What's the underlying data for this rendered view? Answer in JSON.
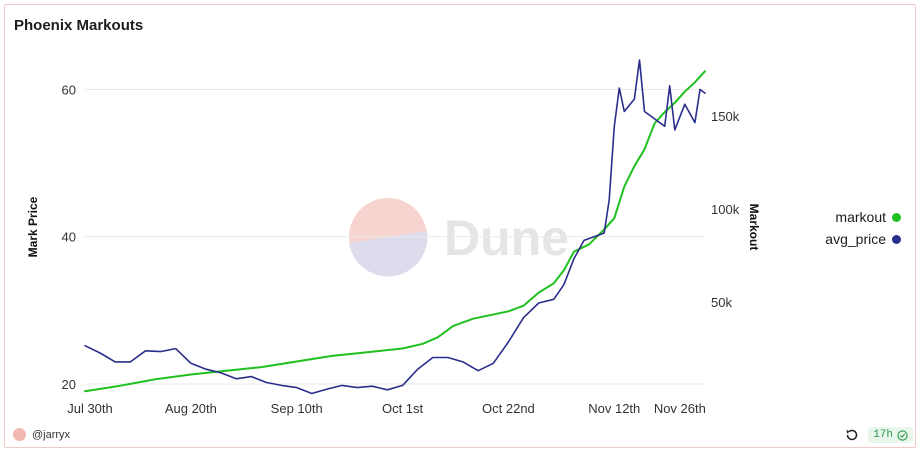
{
  "title": "Phoenix Markouts",
  "watermark": "Dune",
  "author": "@jarryx",
  "refresh_age": "17h",
  "icons": {
    "refresh": "refresh-icon",
    "status": "check-circle-icon",
    "avatar": "avatar"
  },
  "colors": {
    "markout": "#1fc01f",
    "avg_price": "#2a2e8a",
    "grid": "#e9e9e9",
    "accent_green": "#2a9b4a"
  },
  "chart_data": {
    "type": "line",
    "title": "Phoenix Markouts",
    "xlabel": "",
    "y_left_label": "Mark Price",
    "y_right_label": "Markout",
    "x_ticks": [
      "Jul 30th",
      "Aug 20th",
      "Sep 10th",
      "Oct 1st",
      "Oct 22nd",
      "Nov 12th",
      "Nov 26th"
    ],
    "x_domain": [
      "2024-07-30",
      "2024-11-30"
    ],
    "y_left_ticks": [
      "20",
      "40",
      "60"
    ],
    "y_left_range": [
      18.5,
      64
    ],
    "y_right_ticks": [
      "50k",
      "100k",
      "150k"
    ],
    "y_right_range": [
      0,
      180000
    ],
    "grid": true,
    "legend_position": "right",
    "series": [
      {
        "name": "markout",
        "axis": "right",
        "color": "#1fc01f",
        "points": [
          [
            "2024-07-30",
            2000
          ],
          [
            "2024-08-06",
            5000
          ],
          [
            "2024-08-13",
            8500
          ],
          [
            "2024-08-20",
            11000
          ],
          [
            "2024-08-27",
            13000
          ],
          [
            "2024-09-03",
            15000
          ],
          [
            "2024-09-10",
            18000
          ],
          [
            "2024-09-17",
            21000
          ],
          [
            "2024-09-24",
            23000
          ],
          [
            "2024-10-01",
            25000
          ],
          [
            "2024-10-05",
            27500
          ],
          [
            "2024-10-08",
            31000
          ],
          [
            "2024-10-11",
            37000
          ],
          [
            "2024-10-15",
            41000
          ],
          [
            "2024-10-22",
            45000
          ],
          [
            "2024-10-25",
            48000
          ],
          [
            "2024-10-28",
            55000
          ],
          [
            "2024-10-31",
            60000
          ],
          [
            "2024-11-02",
            67000
          ],
          [
            "2024-11-04",
            77000
          ],
          [
            "2024-11-07",
            81000
          ],
          [
            "2024-11-10",
            89000
          ],
          [
            "2024-11-12",
            95000
          ],
          [
            "2024-11-14",
            112000
          ],
          [
            "2024-11-16",
            123000
          ],
          [
            "2024-11-18",
            132000
          ],
          [
            "2024-11-20",
            146000
          ],
          [
            "2024-11-22",
            152000
          ],
          [
            "2024-11-24",
            157000
          ],
          [
            "2024-11-26",
            163000
          ],
          [
            "2024-11-28",
            168000
          ],
          [
            "2024-11-30",
            174000
          ]
        ]
      },
      {
        "name": "avg_price",
        "axis": "left",
        "color": "#2a2e8a",
        "points": [
          [
            "2024-07-30",
            25.2
          ],
          [
            "2024-08-02",
            24.2
          ],
          [
            "2024-08-05",
            23.0
          ],
          [
            "2024-08-08",
            23.0
          ],
          [
            "2024-08-11",
            24.5
          ],
          [
            "2024-08-14",
            24.4
          ],
          [
            "2024-08-17",
            24.8
          ],
          [
            "2024-08-20",
            22.8
          ],
          [
            "2024-08-23",
            22.0
          ],
          [
            "2024-08-26",
            21.5
          ],
          [
            "2024-08-29",
            20.7
          ],
          [
            "2024-09-01",
            21.0
          ],
          [
            "2024-09-04",
            20.2
          ],
          [
            "2024-09-07",
            19.8
          ],
          [
            "2024-09-10",
            19.5
          ],
          [
            "2024-09-13",
            18.7
          ],
          [
            "2024-09-16",
            19.3
          ],
          [
            "2024-09-19",
            19.8
          ],
          [
            "2024-09-22",
            19.5
          ],
          [
            "2024-09-25",
            19.7
          ],
          [
            "2024-09-28",
            19.2
          ],
          [
            "2024-10-01",
            19.8
          ],
          [
            "2024-10-04",
            22.0
          ],
          [
            "2024-10-07",
            23.6
          ],
          [
            "2024-10-10",
            23.6
          ],
          [
            "2024-10-13",
            23.0
          ],
          [
            "2024-10-16",
            21.8
          ],
          [
            "2024-10-19",
            22.8
          ],
          [
            "2024-10-22",
            25.7
          ],
          [
            "2024-10-25",
            29.0
          ],
          [
            "2024-10-28",
            31.0
          ],
          [
            "2024-10-31",
            31.5
          ],
          [
            "2024-11-02",
            33.5
          ],
          [
            "2024-11-04",
            37.0
          ],
          [
            "2024-11-06",
            39.5
          ],
          [
            "2024-11-08",
            40.0
          ],
          [
            "2024-11-10",
            40.5
          ],
          [
            "2024-11-11",
            45.0
          ],
          [
            "2024-11-12",
            55.0
          ],
          [
            "2024-11-13",
            60.2
          ],
          [
            "2024-11-14",
            57.0
          ],
          [
            "2024-11-16",
            58.7
          ],
          [
            "2024-11-17",
            64.0
          ],
          [
            "2024-11-18",
            57.0
          ],
          [
            "2024-11-20",
            56.0
          ],
          [
            "2024-11-22",
            55.0
          ],
          [
            "2024-11-23",
            60.5
          ],
          [
            "2024-11-24",
            54.5
          ],
          [
            "2024-11-26",
            58.0
          ],
          [
            "2024-11-28",
            55.5
          ],
          [
            "2024-11-29",
            60.0
          ],
          [
            "2024-11-30",
            59.5
          ]
        ]
      }
    ]
  }
}
